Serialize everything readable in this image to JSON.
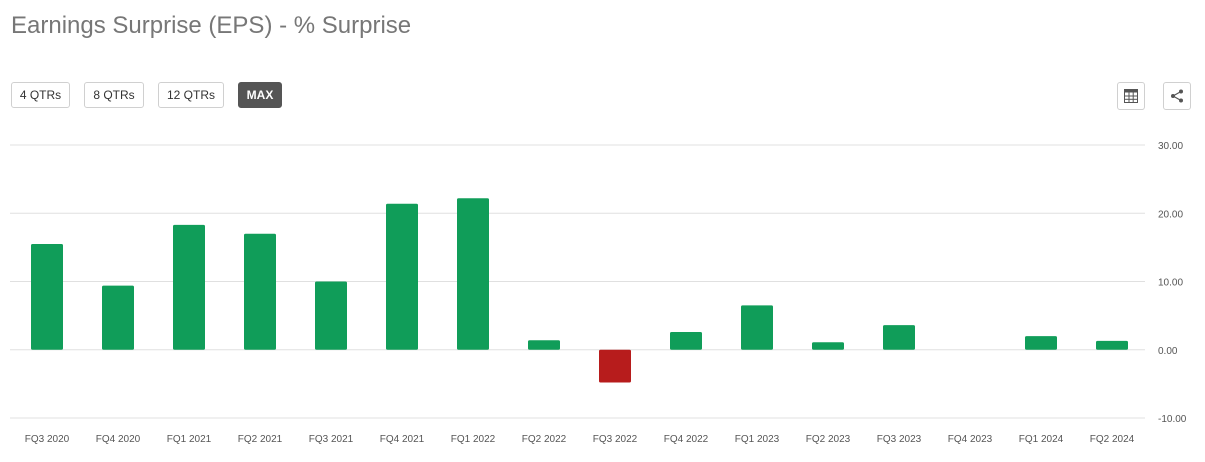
{
  "header": {
    "title": "Earnings Surprise (EPS) - % Surprise"
  },
  "range_buttons": [
    "4 QTRs",
    "8 QTRs",
    "12 QTRs",
    "MAX"
  ],
  "active_range": "MAX",
  "icons": {
    "table": "table-icon",
    "share": "share-icon"
  },
  "colors": {
    "positive": "#109d59",
    "negative": "#b71c1c",
    "grid": "#e0e0e0",
    "active_button": "#555555"
  },
  "chart_data": {
    "type": "bar",
    "title": "",
    "xlabel": "",
    "ylabel": "",
    "categories": [
      "FQ3 2020",
      "FQ4 2020",
      "FQ1 2021",
      "FQ2 2021",
      "FQ3 2021",
      "FQ4 2021",
      "FQ1 2022",
      "FQ2 2022",
      "FQ3 2022",
      "FQ4 2022",
      "FQ1 2023",
      "FQ2 2023",
      "FQ3 2023",
      "FQ4 2023",
      "FQ1 2024",
      "FQ2 2024"
    ],
    "values": [
      15.5,
      9.4,
      18.3,
      17.0,
      10.0,
      21.4,
      22.2,
      1.4,
      -4.8,
      2.6,
      6.5,
      1.1,
      3.6,
      0,
      2.0,
      1.3
    ],
    "ylim": [
      -10,
      30
    ],
    "yticks": [
      "30.00",
      "20.00",
      "10.00",
      "0.00",
      "-10.00"
    ],
    "ytick_values": [
      30,
      20,
      10,
      0,
      -10
    ],
    "grid": true,
    "legend": "none",
    "y_axis_side": "right"
  }
}
